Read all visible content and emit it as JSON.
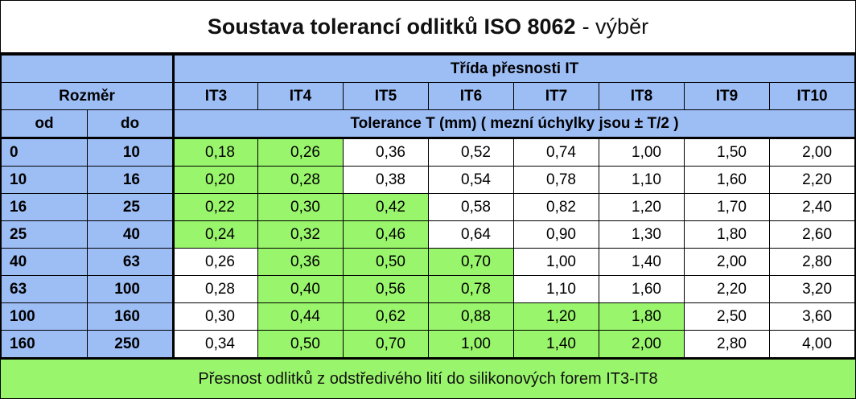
{
  "title": {
    "main": "Soustava tolerancí odlitků ISO 8062",
    "suffix": "- výběr"
  },
  "header": {
    "class_group": "Třída přesnosti IT",
    "dimension_group": "Rozměr",
    "from": "od",
    "to": "do",
    "classes": [
      "IT3",
      "IT4",
      "IT5",
      "IT6",
      "IT7",
      "IT8",
      "IT9",
      "IT10"
    ],
    "tolerance_caption": "Tolerance T  (mm)  ( mezní úchylky jsou ± T/2 )"
  },
  "rows": [
    {
      "from": "0",
      "to": "10",
      "values": [
        "0,18",
        "0,26",
        "0,36",
        "0,52",
        "0,74",
        "1,00",
        "1,50",
        "2,00"
      ],
      "highlight": [
        true,
        true,
        false,
        false,
        false,
        false,
        false,
        false
      ]
    },
    {
      "from": "10",
      "to": "16",
      "values": [
        "0,20",
        "0,28",
        "0,38",
        "0,54",
        "0,78",
        "1,10",
        "1,60",
        "2,20"
      ],
      "highlight": [
        true,
        true,
        false,
        false,
        false,
        false,
        false,
        false
      ]
    },
    {
      "from": "16",
      "to": "25",
      "values": [
        "0,22",
        "0,30",
        "0,42",
        "0,58",
        "0,82",
        "1,20",
        "1,70",
        "2,40"
      ],
      "highlight": [
        true,
        true,
        true,
        false,
        false,
        false,
        false,
        false
      ]
    },
    {
      "from": "25",
      "to": "40",
      "values": [
        "0,24",
        "0,32",
        "0,46",
        "0,64",
        "0,90",
        "1,30",
        "1,80",
        "2,60"
      ],
      "highlight": [
        true,
        true,
        true,
        false,
        false,
        false,
        false,
        false
      ]
    },
    {
      "from": "40",
      "to": "63",
      "values": [
        "0,26",
        "0,36",
        "0,50",
        "0,70",
        "1,00",
        "1,40",
        "2,00",
        "2,80"
      ],
      "highlight": [
        false,
        true,
        true,
        true,
        false,
        false,
        false,
        false
      ]
    },
    {
      "from": "63",
      "to": "100",
      "values": [
        "0,28",
        "0,40",
        "0,56",
        "0,78",
        "1,10",
        "1,60",
        "2,20",
        "3,20"
      ],
      "highlight": [
        false,
        true,
        true,
        true,
        false,
        false,
        false,
        false
      ]
    },
    {
      "from": "100",
      "to": "160",
      "values": [
        "0,30",
        "0,44",
        "0,62",
        "0,88",
        "1,20",
        "1,80",
        "2,50",
        "3,60"
      ],
      "highlight": [
        false,
        true,
        true,
        true,
        true,
        true,
        false,
        false
      ]
    },
    {
      "from": "160",
      "to": "250",
      "values": [
        "0,34",
        "0,50",
        "0,70",
        "1,00",
        "1,40",
        "2,00",
        "2,80",
        "4,00"
      ],
      "highlight": [
        false,
        true,
        true,
        true,
        true,
        true,
        false,
        false
      ]
    }
  ],
  "footer": "Přesnost odlitků z odstředivého lití do silikonových forem IT3-IT8",
  "colors": {
    "header_blue": "#9dbdf5",
    "highlight_green": "#99f56b"
  }
}
